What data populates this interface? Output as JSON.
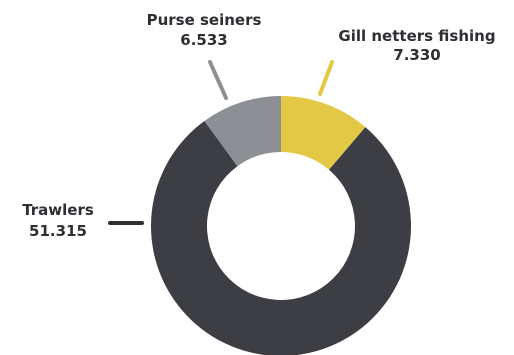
{
  "chart_data": {
    "type": "pie",
    "title": "",
    "categories": [
      "Gill netters fishing",
      "Trawlers",
      "Purse seiners"
    ],
    "values": [
      7.33,
      51.315,
      6.533
    ],
    "value_labels": [
      "7.330",
      "51.315",
      "6.533"
    ],
    "colors": [
      "#e3c845",
      "#3d3e44",
      "#8c8f94"
    ],
    "leader_color": "#2e2f33",
    "hole": "donut",
    "legend": "none"
  }
}
